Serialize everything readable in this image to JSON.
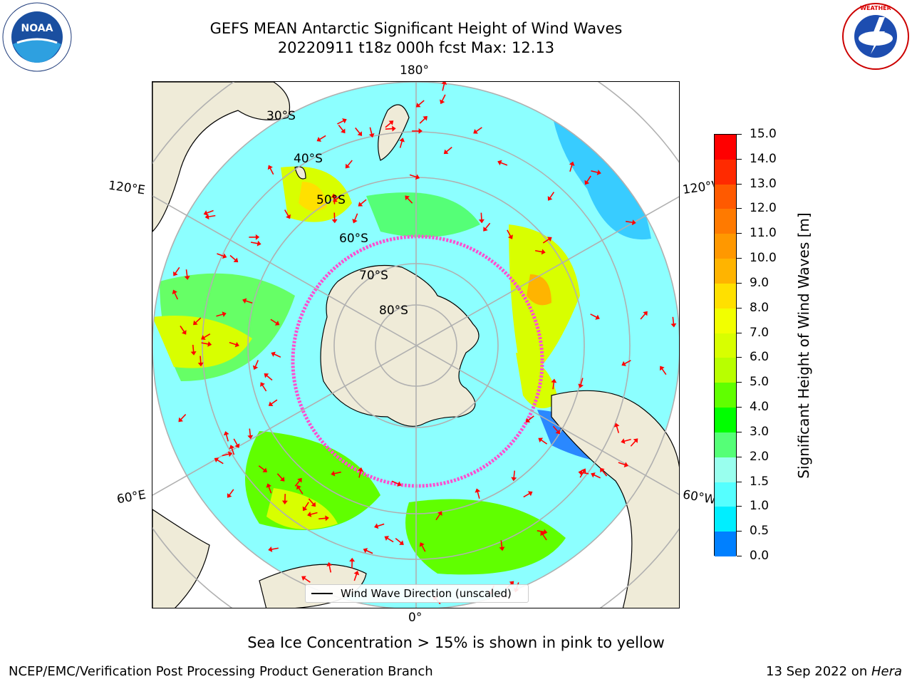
{
  "header": {
    "title_line1": "GEFS MEAN Antarctic Significant Height of Wind Waves",
    "title_line2": "20220911 t18z 000h fcst   Max: 12.13"
  },
  "logos": {
    "left": {
      "name": "NOARA-logo",
      "text": "NOAA"
    },
    "right": {
      "name": "national-weather-service-logo",
      "text": "NATIONAL WEATHER SERVICE"
    }
  },
  "map": {
    "projection": "south-polar-stereographic",
    "longitude_labels": [
      "180°",
      "120°E",
      "120°W",
      "60°E",
      "60°W",
      "0°"
    ],
    "latitude_labels": [
      "30°S",
      "40°S",
      "50°S",
      "60°S",
      "70°S",
      "80°S"
    ],
    "legend_text": "Wind Wave Direction (unscaled)",
    "colors": {
      "land": "#efebd8",
      "graticule": "#b0b0b0",
      "arrows": "#ff0000",
      "sea_ice": "#ff4fd0"
    }
  },
  "colorbar": {
    "title": "Significant Height of Wind Waves [m]",
    "ticks": [
      "15.0",
      "14.0",
      "13.0",
      "12.0",
      "11.0",
      "10.0",
      "9.0",
      "8.0",
      "7.0",
      "6.0",
      "5.0",
      "4.0",
      "3.0",
      "2.0",
      "1.5",
      "1.0",
      "0.5",
      "0.0"
    ],
    "colors": [
      "#ff0000",
      "#ff2a00",
      "#ff5a00",
      "#ff7a00",
      "#ff9800",
      "#ffb400",
      "#ffe000",
      "#f2ff00",
      "#d8ff00",
      "#b8ff00",
      "#60ff00",
      "#00ff00",
      "#55ff77",
      "#99ffee",
      "#55ffff",
      "#00eeff",
      "#0080ff",
      "#0000ff"
    ]
  },
  "footer": {
    "note": "Sea Ice Concentration > 15% is shown in pink to yellow",
    "credit_left": "NCEP/EMC/Verification Post Processing Product Generation Branch",
    "credit_right_prefix": "13 Sep 2022 on ",
    "credit_right_host": "Hera"
  }
}
